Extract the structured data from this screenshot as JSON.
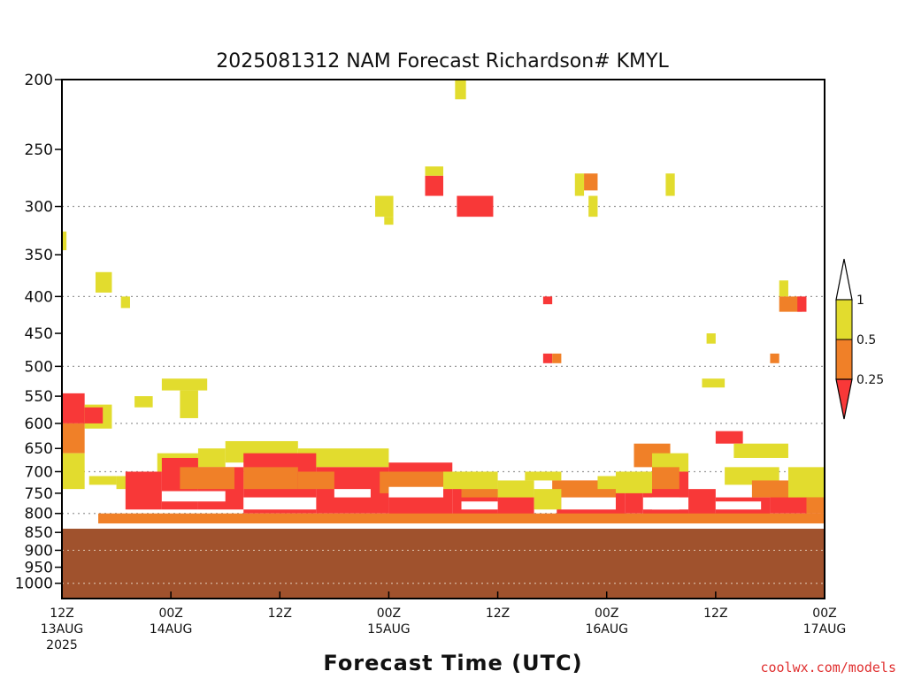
{
  "chart_data": {
    "type": "heatmap",
    "title": "2025081312 NAM Forecast Richardson# KMYL",
    "xlabel": "Forecast Time (UTC)",
    "credit": "coolwx.com/models",
    "y_ticks": [
      "200",
      "250",
      "300",
      "350",
      "400",
      "450",
      "500",
      "550",
      "600",
      "650",
      "700",
      "750",
      "800",
      "850",
      "900",
      "950",
      "1000"
    ],
    "y_scale": "pressure (log-p), inverted",
    "grid_levels": [
      300,
      400,
      500,
      600,
      700,
      800,
      900,
      1000
    ],
    "x_ticks": [
      {
        "l1": "12Z",
        "l2": "13AUG",
        "l3": "2025"
      },
      {
        "l1": "00Z",
        "l2": "14AUG",
        "l3": ""
      },
      {
        "l1": "12Z",
        "l2": "",
        "l3": ""
      },
      {
        "l1": "00Z",
        "l2": "15AUG",
        "l3": ""
      },
      {
        "l1": "12Z",
        "l2": "",
        "l3": ""
      },
      {
        "l1": "00Z",
        "l2": "16AUG",
        "l3": ""
      },
      {
        "l1": "12Z",
        "l2": "",
        "l3": ""
      },
      {
        "l1": "00Z",
        "l2": "17AUG",
        "l3": ""
      }
    ],
    "x_range_hours": [
      0,
      84
    ],
    "legend": {
      "placement": "right",
      "ticks": [
        "1",
        "0.5",
        "0.25"
      ],
      "bins": [
        {
          "range": "0.5–1",
          "color": "#e2dc2e"
        },
        {
          "range": "0.25–0.5",
          "color": "#f08028"
        },
        {
          "range": "< 0.25",
          "color": "#f83838"
        }
      ]
    },
    "colors": {
      "yellow": "#e2dc2e",
      "orange": "#f08028",
      "red": "#f83838",
      "ground": "#a0522d"
    },
    "ground_top_hPa": 840,
    "cells": [
      {
        "h": 43.3,
        "h2": 44.5,
        "p1": 200,
        "p2": 213,
        "c": "y"
      },
      {
        "h": 40,
        "h2": 42,
        "p1": 264,
        "p2": 272,
        "c": "y"
      },
      {
        "h": 40,
        "h2": 42,
        "p1": 272,
        "p2": 290,
        "c": "r"
      },
      {
        "h": 43.5,
        "h2": 47.5,
        "p1": 290,
        "p2": 310,
        "c": "r"
      },
      {
        "h": 34.5,
        "h2": 36.5,
        "p1": 290,
        "p2": 310,
        "c": "y"
      },
      {
        "h": 35.5,
        "h2": 36.5,
        "p1": 310,
        "p2": 318,
        "c": "y"
      },
      {
        "h": 0,
        "h2": 0.5,
        "p1": 325,
        "p2": 345,
        "c": "y"
      },
      {
        "h": 3.7,
        "h2": 5.5,
        "p1": 370,
        "p2": 395,
        "c": "y"
      },
      {
        "h": 6.5,
        "h2": 7.5,
        "p1": 400,
        "p2": 415,
        "c": "y"
      },
      {
        "h": 57.5,
        "h2": 59,
        "p1": 270,
        "p2": 285,
        "c": "o"
      },
      {
        "h": 56.5,
        "h2": 57.5,
        "p1": 270,
        "p2": 290,
        "c": "y"
      },
      {
        "h": 58,
        "h2": 59,
        "p1": 290,
        "p2": 310,
        "c": "y"
      },
      {
        "h": 66.5,
        "h2": 67.5,
        "p1": 270,
        "p2": 290,
        "c": "y"
      },
      {
        "h": 53,
        "h2": 54,
        "p1": 400,
        "p2": 410,
        "c": "r"
      },
      {
        "h": 53,
        "h2": 54,
        "p1": 480,
        "p2": 495,
        "c": "r"
      },
      {
        "h": 54,
        "h2": 55,
        "p1": 480,
        "p2": 495,
        "c": "o"
      },
      {
        "h": 71,
        "h2": 72,
        "p1": 450,
        "p2": 465,
        "c": "y"
      },
      {
        "h": 79,
        "h2": 80,
        "p1": 380,
        "p2": 400,
        "c": "y"
      },
      {
        "h": 79,
        "h2": 81.5,
        "p1": 400,
        "p2": 420,
        "c": "o"
      },
      {
        "h": 81,
        "h2": 82,
        "p1": 400,
        "p2": 420,
        "c": "r"
      },
      {
        "h": 78,
        "h2": 79,
        "p1": 480,
        "p2": 495,
        "c": "o"
      },
      {
        "h": 70.5,
        "h2": 73,
        "p1": 520,
        "p2": 535,
        "c": "y"
      },
      {
        "h": 11,
        "h2": 16,
        "p1": 520,
        "p2": 540,
        "c": "y"
      },
      {
        "h": 13,
        "h2": 15,
        "p1": 540,
        "p2": 590,
        "c": "y"
      },
      {
        "h": 8,
        "h2": 10,
        "p1": 550,
        "p2": 570,
        "c": "y"
      },
      {
        "h": 0,
        "h2": 2.5,
        "p1": 545,
        "p2": 600,
        "c": "r"
      },
      {
        "h": 2.5,
        "h2": 5.5,
        "p1": 565,
        "p2": 610,
        "c": "y"
      },
      {
        "h": 2.5,
        "h2": 4.5,
        "p1": 570,
        "p2": 600,
        "c": "r"
      },
      {
        "h": 0,
        "h2": 2.5,
        "p1": 600,
        "p2": 660,
        "c": "o"
      },
      {
        "h": 0,
        "h2": 2.5,
        "p1": 660,
        "p2": 740,
        "c": "y"
      },
      {
        "h": 3,
        "h2": 6,
        "p1": 710,
        "p2": 730,
        "c": "y"
      },
      {
        "h": 6,
        "h2": 9,
        "p1": 710,
        "p2": 740,
        "c": "y"
      },
      {
        "h": 10.5,
        "h2": 15,
        "p1": 660,
        "p2": 700,
        "c": "y"
      },
      {
        "h": 15,
        "h2": 18,
        "p1": 650,
        "p2": 690,
        "c": "y"
      },
      {
        "h": 18,
        "h2": 26,
        "p1": 635,
        "p2": 680,
        "c": "y"
      },
      {
        "h": 26,
        "h2": 36,
        "p1": 650,
        "p2": 690,
        "c": "y"
      },
      {
        "h": 63,
        "h2": 67,
        "p1": 640,
        "p2": 690,
        "c": "o"
      },
      {
        "h": 65,
        "h2": 69,
        "p1": 660,
        "p2": 700,
        "c": "y"
      },
      {
        "h": 72,
        "h2": 75,
        "p1": 615,
        "p2": 640,
        "c": "r"
      },
      {
        "h": 74,
        "h2": 80,
        "p1": 640,
        "p2": 670,
        "c": "y"
      },
      {
        "h": 73,
        "h2": 79,
        "p1": 690,
        "p2": 730,
        "c": "y"
      },
      {
        "h": 7,
        "h2": 11,
        "p1": 700,
        "p2": 790,
        "c": "r"
      },
      {
        "h": 11,
        "h2": 15,
        "p1": 670,
        "p2": 790,
        "c": "r"
      },
      {
        "h": 15,
        "h2": 20,
        "p1": 690,
        "p2": 790,
        "c": "r"
      },
      {
        "h": 20,
        "h2": 28,
        "p1": 660,
        "p2": 800,
        "c": "r"
      },
      {
        "h": 28,
        "h2": 36,
        "p1": 690,
        "p2": 800,
        "c": "r"
      },
      {
        "h": 36,
        "h2": 43,
        "p1": 680,
        "p2": 810,
        "c": "r"
      },
      {
        "h": 43,
        "h2": 48,
        "p1": 720,
        "p2": 820,
        "c": "r"
      },
      {
        "h": 48,
        "h2": 52,
        "p1": 740,
        "p2": 820,
        "c": "r"
      },
      {
        "h": 54.5,
        "h2": 62,
        "p1": 720,
        "p2": 820,
        "c": "r"
      },
      {
        "h": 62,
        "h2": 64,
        "p1": 740,
        "p2": 800,
        "c": "r"
      },
      {
        "h": 64,
        "h2": 69,
        "p1": 700,
        "p2": 760,
        "c": "r"
      },
      {
        "h": 64,
        "h2": 69,
        "p1": 790,
        "p2": 820,
        "c": "r"
      },
      {
        "h": 69,
        "h2": 72,
        "p1": 740,
        "p2": 810,
        "c": "r"
      },
      {
        "h": 72,
        "h2": 78,
        "p1": 760,
        "p2": 820,
        "c": "r"
      },
      {
        "h": 78,
        "h2": 84,
        "p1": 740,
        "p2": 800,
        "c": "r"
      },
      {
        "h": 13,
        "h2": 19,
        "p1": 690,
        "p2": 740,
        "c": "o"
      },
      {
        "h": 20,
        "h2": 26,
        "p1": 690,
        "p2": 740,
        "c": "o"
      },
      {
        "h": 26,
        "h2": 30,
        "p1": 700,
        "p2": 740,
        "c": "o"
      },
      {
        "h": 35,
        "h2": 42,
        "p1": 700,
        "p2": 750,
        "c": "o"
      },
      {
        "h": 44,
        "h2": 48,
        "p1": 720,
        "p2": 760,
        "c": "o"
      },
      {
        "h": 54,
        "h2": 61,
        "p1": 720,
        "p2": 760,
        "c": "o"
      },
      {
        "h": 65,
        "h2": 68,
        "p1": 690,
        "p2": 740,
        "c": "o"
      },
      {
        "h": 76,
        "h2": 81,
        "p1": 720,
        "p2": 760,
        "c": "o"
      },
      {
        "h": 42,
        "h2": 48,
        "p1": 700,
        "p2": 740,
        "c": "y"
      },
      {
        "h": 48,
        "h2": 52,
        "p1": 720,
        "p2": 760,
        "c": "y"
      },
      {
        "h": 51,
        "h2": 55,
        "p1": 700,
        "p2": 720,
        "c": "y"
      },
      {
        "h": 52,
        "h2": 55,
        "p1": 740,
        "p2": 790,
        "c": "y"
      },
      {
        "h": 59,
        "h2": 62,
        "p1": 710,
        "p2": 740,
        "c": "y"
      },
      {
        "h": 61,
        "h2": 65,
        "p1": 700,
        "p2": 750,
        "c": "y"
      },
      {
        "h": 80,
        "h2": 84,
        "p1": 690,
        "p2": 760,
        "c": "y"
      },
      {
        "h": 82,
        "h2": 84,
        "p1": 760,
        "p2": 800,
        "c": "o"
      },
      {
        "h": 4,
        "h2": 84,
        "p1": 800,
        "p2": 830,
        "c": "o"
      }
    ],
    "gaps": [
      {
        "h": 11,
        "h2": 18,
        "p1": 745,
        "p2": 770
      },
      {
        "h": 20,
        "h2": 28,
        "p1": 760,
        "p2": 790
      },
      {
        "h": 30,
        "h2": 34,
        "p1": 740,
        "p2": 760
      },
      {
        "h": 36,
        "h2": 42,
        "p1": 735,
        "p2": 760
      },
      {
        "h": 44,
        "h2": 48,
        "p1": 770,
        "p2": 790
      },
      {
        "h": 55,
        "h2": 61,
        "p1": 760,
        "p2": 790
      },
      {
        "h": 65,
        "h2": 68,
        "p1": 760,
        "p2": 790
      },
      {
        "h": 72,
        "h2": 77,
        "p1": 770,
        "p2": 790
      },
      {
        "h": 0,
        "h2": 84,
        "p1": 826,
        "p2": 832
      }
    ]
  }
}
